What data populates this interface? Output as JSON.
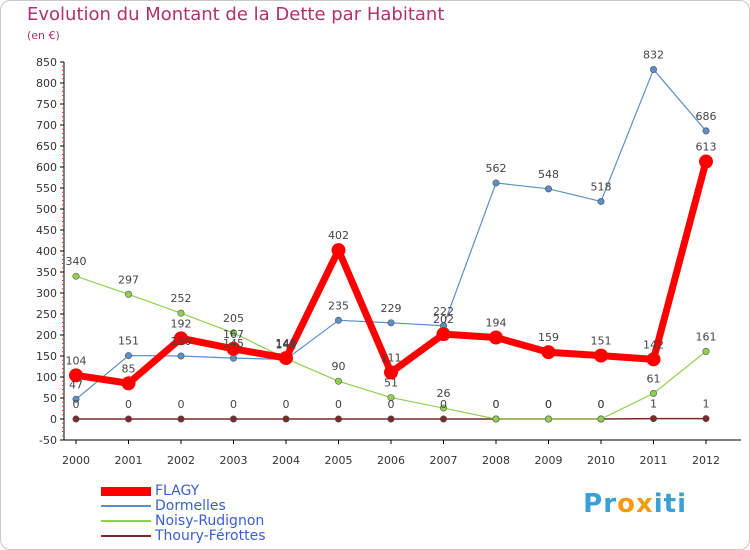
{
  "chart_data": {
    "type": "line",
    "title": "Evolution du Montant de la Dette par Habitant",
    "subtitle": "(en €)",
    "xlabel": "",
    "ylabel": "",
    "categories": [
      "2000",
      "2001",
      "2002",
      "2003",
      "2004",
      "2005",
      "2006",
      "2007",
      "2008",
      "2009",
      "2010",
      "2011",
      "2012"
    ],
    "ylim": [
      -50,
      850
    ],
    "yticks": [
      -50,
      0,
      50,
      100,
      150,
      200,
      250,
      300,
      350,
      400,
      450,
      500,
      550,
      600,
      650,
      700,
      750,
      800,
      850
    ],
    "grid": "none",
    "legend_position": "bottom-left",
    "series": [
      {
        "name": "FLAGY",
        "color": "#ff0000",
        "values": [
          104,
          85,
          192,
          167,
          145,
          402,
          111,
          202,
          194,
          159,
          151,
          142,
          613
        ]
      },
      {
        "name": "Dormelles",
        "color": "#5b8fc7",
        "values": [
          47,
          151,
          150,
          145,
          142,
          235,
          229,
          222,
          562,
          548,
          518,
          832,
          686
        ]
      },
      {
        "name": "Noisy-Rudignon",
        "color": "#8fd14f",
        "values": [
          340,
          297,
          252,
          205,
          144,
          90,
          51,
          26,
          0,
          0,
          0,
          61,
          161
        ]
      },
      {
        "name": "Thoury-Férottes",
        "color": "#7a2a2a",
        "values": [
          0,
          0,
          0,
          0,
          0,
          0,
          0,
          0,
          0,
          0,
          0,
          1,
          1
        ]
      }
    ]
  },
  "brand": {
    "text": "Proxiti"
  }
}
